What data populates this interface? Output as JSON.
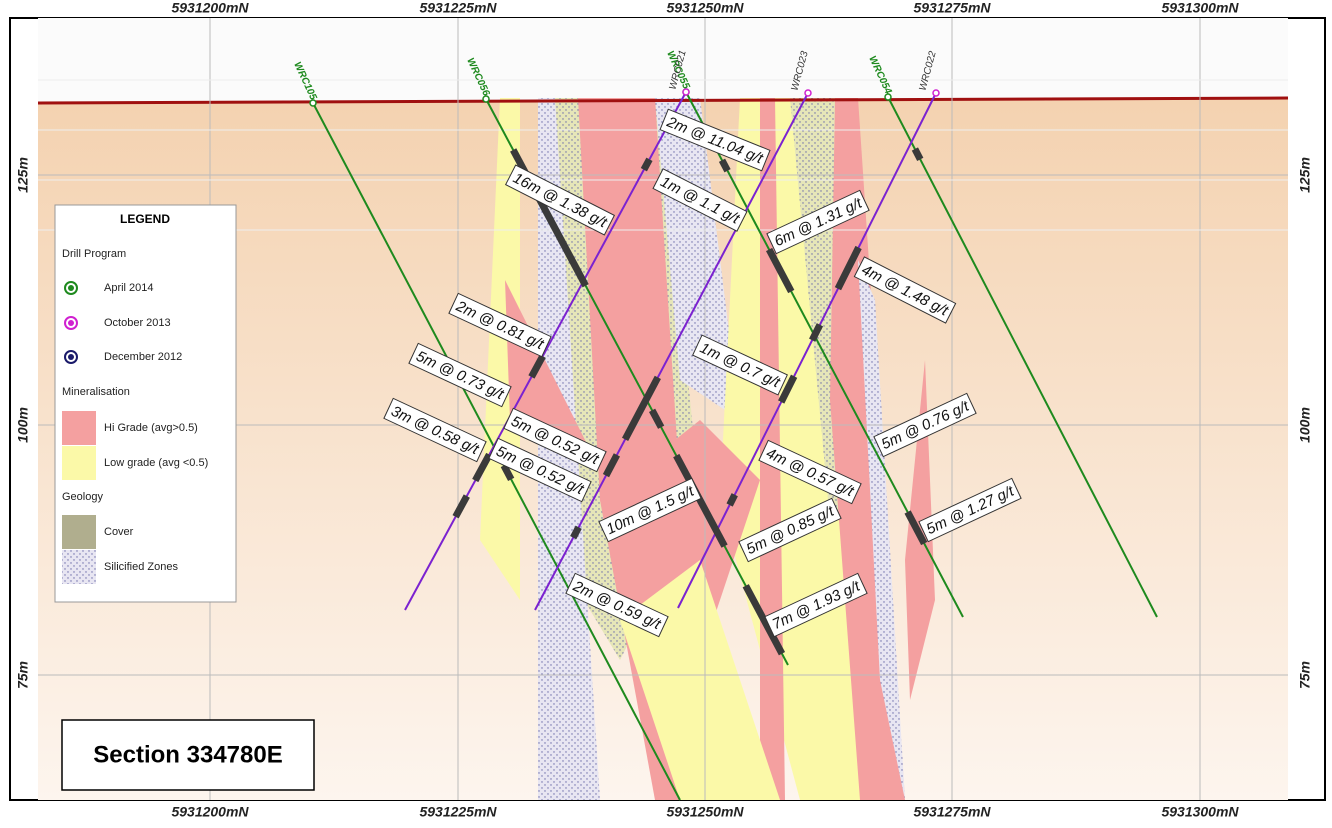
{
  "top_axis": [
    "5931200mN",
    "5931225mN",
    "5931250mN",
    "5931275mN",
    "5931300mN"
  ],
  "bottom_axis": [
    "5931200mN",
    "5931225mN",
    "5931250mN",
    "5931275mN",
    "5931300mN"
  ],
  "left_axis": [
    "125m",
    "100m",
    "75m"
  ],
  "right_axis": [
    "125m",
    "100m",
    "75m"
  ],
  "holes": [
    "WRC105",
    "WRC056",
    "WRC055",
    "WRC054",
    "WRC021",
    "WRC023",
    "WRC022"
  ],
  "intercepts": [
    "2m @ 11.04 g/t",
    "16m @ 1.38 g/t",
    "1m @ 1.1 g/t",
    "6m @ 1.31 g/t",
    "4m @ 1.48 g/t",
    "2m @ 0.81 g/t",
    "1m @ 0.7 g/t",
    "5m @ 0.73 g/t",
    "3m @ 0.58 g/t",
    "5m @ 0.52 g/t",
    "5m @ 0.52 g/t",
    "5m @ 0.76 g/t",
    "4m @ 0.57 g/t",
    "10m @ 1.5 g/t",
    "5m @ 0.85 g/t",
    "5m @ 1.27 g/t",
    "2m @ 0.59 g/t",
    "7m @ 1.93 g/t"
  ],
  "legend": {
    "title": "LEGEND",
    "items": [
      "Drill Program",
      "April 2014",
      "October 2013",
      "December 2012",
      "Mineralisation",
      "Hi Grade (avg>0.5)",
      "Low grade (avg <0.5)",
      "Geology",
      "Cover",
      "Silicified Zones"
    ]
  },
  "section": "Section 334780E"
}
